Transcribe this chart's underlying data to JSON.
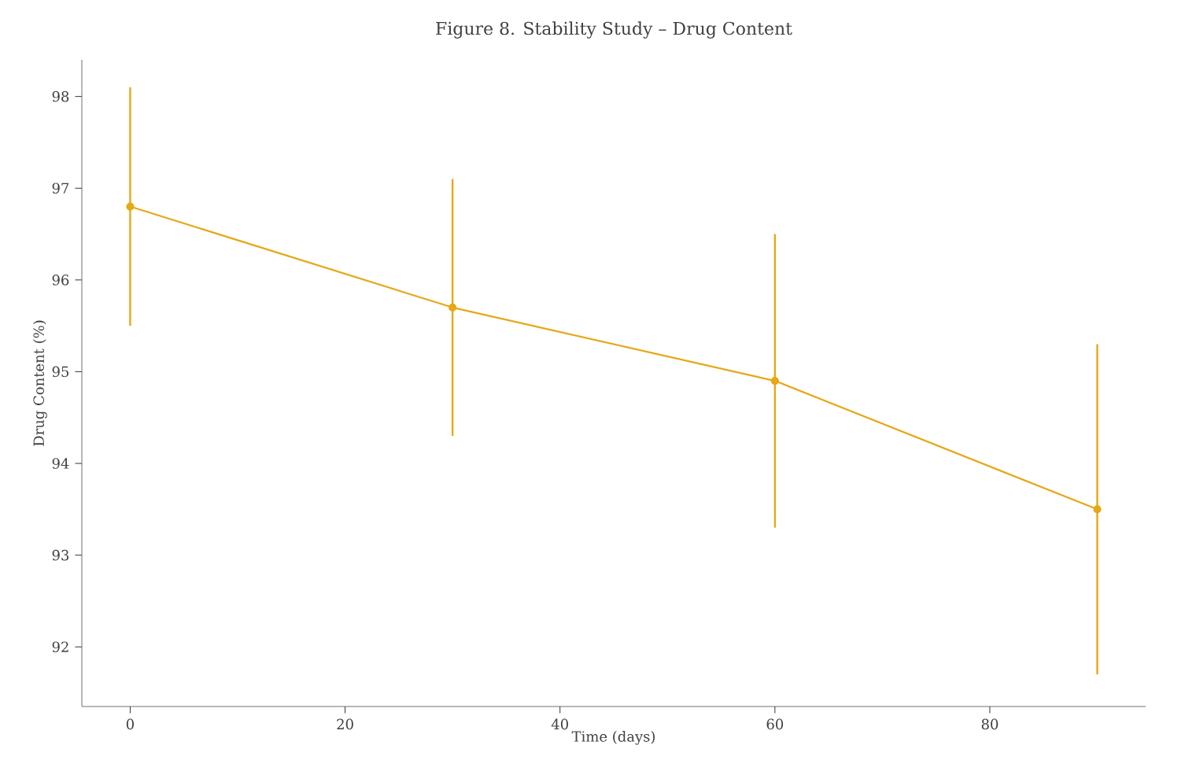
{
  "chart_data": {
    "type": "line",
    "title": "Figure 8. Stability Study – Drug Content",
    "xlabel": "Time (days)",
    "ylabel": "Drug Content (%)",
    "x": [
      0,
      30,
      60,
      90
    ],
    "series": [
      {
        "color": "#e6a817",
        "values": [
          96.8,
          95.7,
          94.9,
          93.5
        ],
        "errors": [
          1.3,
          1.4,
          1.6,
          1.8
        ]
      }
    ],
    "xlim": [
      -4.5,
      94.5
    ],
    "ylim": [
      91.35,
      98.4
    ],
    "xticks": [
      0,
      20,
      40,
      60,
      80
    ],
    "yticks": [
      92,
      93,
      94,
      95,
      96,
      97,
      98
    ],
    "marker": "circle",
    "line_style": "solid",
    "grid": false
  }
}
